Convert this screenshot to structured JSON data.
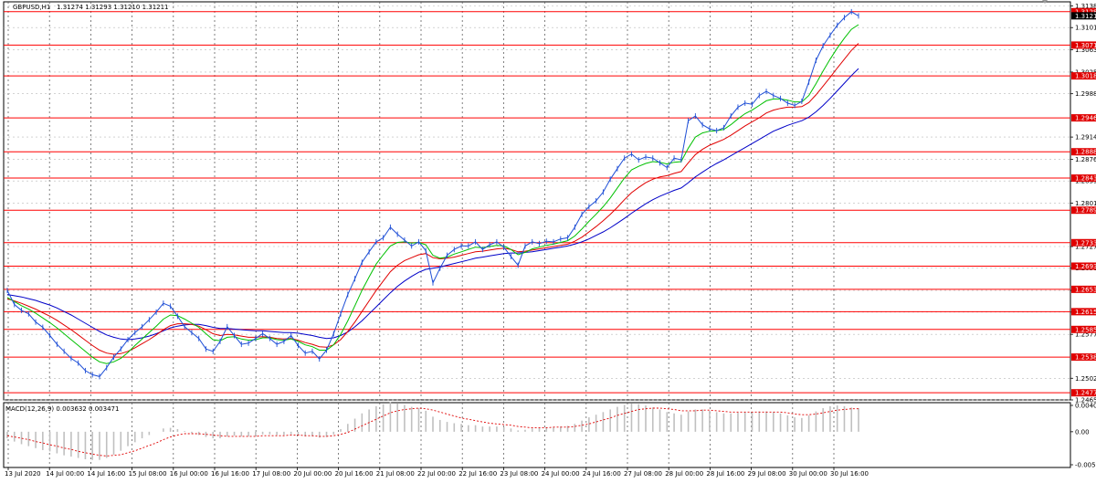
{
  "header": {
    "chart_symbol_label": "GBPUSD,H1",
    "ohlc": "1.31274 1.31293 1.31210 1.31211",
    "macd_label": "MACD(12,26,9)",
    "macd_values": "0.003632 0.003471"
  },
  "colors": {
    "price_line": "#1f4fd6",
    "ma_fast": "#00c000",
    "ma_mid": "#e00000",
    "ma_slow": "#0000c8",
    "level_line": "#ff0000",
    "level_tag": "#e00000",
    "current_tag": "#000000",
    "grid": "#b8b8b8",
    "macd_hist": "#c0c0c0",
    "macd_signal": "#e00000"
  },
  "price_axis_ticks": [
    "1.31380",
    "1.31010",
    "1.30630",
    "1.30250",
    "1.29880",
    "1.29140",
    "1.28760",
    "1.28390",
    "1.28010",
    "1.27270",
    "1.26900",
    "1.26520",
    "1.26150",
    "1.25770",
    "1.25020",
    "1.24650"
  ],
  "level_tags": [
    "1.31282",
    "1.30711",
    "1.30185",
    "1.29468",
    "1.28889",
    "1.28439",
    "1.27891",
    "1.27336",
    "1.26935",
    "1.26539",
    "1.26157",
    "1.25854",
    "1.25382",
    "1.24772"
  ],
  "current_price_tag": "1.31211",
  "macd_axis_ticks": [
    "0.004022",
    "0.00",
    "-0.005036"
  ],
  "time_axis_labels": [
    "13 Jul 2020",
    "14 Jul 00:00",
    "14 Jul 16:00",
    "15 Jul 08:00",
    "16 Jul 00:00",
    "16 Jul 16:00",
    "17 Jul 08:00",
    "20 Jul 00:00",
    "20 Jul 16:00",
    "21 Jul 08:00",
    "22 Jul 00:00",
    "22 Jul 16:00",
    "23 Jul 08:00",
    "24 Jul 00:00",
    "24 Jul 16:00",
    "27 Jul 08:00",
    "28 Jul 00:00",
    "28 Jul 16:00",
    "29 Jul 08:00",
    "30 Jul 00:00",
    "30 Jul 16:00"
  ],
  "chart_data": {
    "type": "line",
    "title": "GBPUSD,H1",
    "ylim": [
      1.2465,
      1.3145
    ],
    "grid": true,
    "series": [
      {
        "key": "price",
        "values": [
          1.2652,
          1.2628,
          1.2618,
          1.2612,
          1.2598,
          1.2589,
          1.2575,
          1.256,
          1.2548,
          1.2536,
          1.2528,
          1.2515,
          1.2508,
          1.2505,
          1.252,
          1.2538,
          1.2552,
          1.2568,
          1.258,
          1.259,
          1.2602,
          1.2615,
          1.263,
          1.2625,
          1.2608,
          1.259,
          1.258,
          1.257,
          1.2552,
          1.2548,
          1.2565,
          1.259,
          1.2575,
          1.256,
          1.2562,
          1.257,
          1.2578,
          1.257,
          1.256,
          1.2565,
          1.2575,
          1.2558,
          1.2545,
          1.2548,
          1.2535,
          1.255,
          1.2578,
          1.2612,
          1.2645,
          1.2672,
          1.27,
          1.2718,
          1.2735,
          1.2742,
          1.276,
          1.2748,
          1.2738,
          1.2728,
          1.2735,
          1.272,
          1.2665,
          1.269,
          1.2712,
          1.2722,
          1.2728,
          1.2728,
          1.2735,
          1.2722,
          1.273,
          1.2735,
          1.2726,
          1.271,
          1.2695,
          1.2728,
          1.2735,
          1.2732,
          1.2736,
          1.2735,
          1.274,
          1.2742,
          1.276,
          1.2782,
          1.2795,
          1.2805,
          1.282,
          1.2842,
          1.286,
          1.2878,
          1.2885,
          1.2875,
          1.288,
          1.2878,
          1.287,
          1.2862,
          1.2878,
          1.2875,
          1.2942,
          1.295,
          1.2935,
          1.2928,
          1.2925,
          1.293,
          1.295,
          1.2965,
          1.2972,
          1.297,
          1.2985,
          1.2992,
          1.2985,
          1.298,
          1.2972,
          1.2968,
          1.2975,
          1.3008,
          1.3045,
          1.307,
          1.3088,
          1.3105,
          1.3118,
          1.3128,
          1.3121
        ]
      },
      {
        "key": "ma_fast",
        "values": [
          1.264,
          1.2633,
          1.2626,
          1.262,
          1.2613,
          1.2605,
          1.2597,
          1.2588,
          1.2578,
          1.2568,
          1.2558,
          1.2548,
          1.2538,
          1.253,
          1.2527,
          1.253,
          1.2536,
          1.2546,
          1.2558,
          1.2569,
          1.258,
          1.2591,
          1.2603,
          1.261,
          1.2609,
          1.2603,
          1.2596,
          1.2589,
          1.2578,
          1.2568,
          1.2566,
          1.2572,
          1.2573,
          1.2569,
          1.2567,
          1.2568,
          1.2571,
          1.2571,
          1.2568,
          1.2567,
          1.2569,
          1.2565,
          1.2559,
          1.2556,
          1.255,
          1.255,
          1.2559,
          1.2577,
          1.26,
          1.2626,
          1.2652,
          1.2675,
          1.2697,
          1.2713,
          1.2728,
          1.2734,
          1.2735,
          1.2733,
          1.2734,
          1.273,
          1.2712,
          1.2707,
          1.2709,
          1.2714,
          1.2718,
          1.2722,
          1.2726,
          1.2725,
          1.2727,
          1.2729,
          1.2728,
          1.2722,
          1.2713,
          1.2717,
          1.2723,
          1.2726,
          1.2729,
          1.2731,
          1.2734,
          1.2737,
          1.2745,
          1.2757,
          1.277,
          1.2782,
          1.2795,
          1.281,
          1.2827,
          1.2844,
          1.2858,
          1.2864,
          1.2869,
          1.2872,
          1.2871,
          1.2868,
          1.2871,
          1.2872,
          1.2895,
          1.2914,
          1.2921,
          1.2924,
          1.2925,
          1.2927,
          1.2935,
          1.2945,
          1.2954,
          1.296,
          1.2968,
          1.2976,
          1.2979,
          1.2979,
          1.2977,
          1.2974,
          1.2974,
          1.2985,
          1.3005,
          1.3027,
          1.3047,
          1.3066,
          1.3083,
          1.3098,
          1.3106
        ]
      },
      {
        "key": "ma_mid",
        "values": [
          1.2638,
          1.2634,
          1.263,
          1.2625,
          1.262,
          1.2614,
          1.2608,
          1.2601,
          1.2593,
          1.2585,
          1.2576,
          1.2567,
          1.2558,
          1.255,
          1.2545,
          1.2543,
          1.2544,
          1.2548,
          1.2554,
          1.2561,
          1.2568,
          1.2576,
          1.2585,
          1.2592,
          1.2595,
          1.2595,
          1.2594,
          1.2591,
          1.2585,
          1.2578,
          1.2575,
          1.2577,
          1.2576,
          1.2574,
          1.2572,
          1.2572,
          1.2573,
          1.2572,
          1.257,
          1.2569,
          1.257,
          1.2567,
          1.2563,
          1.256,
          1.2556,
          1.2555,
          1.2559,
          1.2568,
          1.2582,
          1.2598,
          1.2616,
          1.2634,
          1.2652,
          1.2668,
          1.2684,
          1.2695,
          1.2703,
          1.2708,
          1.2713,
          1.2715,
          1.2708,
          1.2706,
          1.2707,
          1.2709,
          1.2712,
          1.2715,
          1.2718,
          1.2719,
          1.2721,
          1.2723,
          1.2724,
          1.2722,
          1.2718,
          1.2719,
          1.2721,
          1.2723,
          1.2725,
          1.2727,
          1.2729,
          1.2731,
          1.2736,
          1.2743,
          1.2752,
          1.2761,
          1.2771,
          1.2782,
          1.2794,
          1.2807,
          1.2819,
          1.2828,
          1.2836,
          1.2842,
          1.2846,
          1.2848,
          1.2852,
          1.2855,
          1.287,
          1.2884,
          1.2893,
          1.29,
          1.2905,
          1.291,
          1.2917,
          1.2925,
          1.2933,
          1.294,
          1.2947,
          1.2955,
          1.296,
          1.2963,
          1.2965,
          1.2965,
          1.2966,
          1.2973,
          1.2986,
          1.3001,
          1.3016,
          1.3032,
          1.3047,
          1.3062,
          1.3074
        ]
      },
      {
        "key": "ma_slow",
        "values": [
          1.2645,
          1.2643,
          1.2641,
          1.2638,
          1.2635,
          1.2631,
          1.2627,
          1.2622,
          1.2616,
          1.261,
          1.2603,
          1.2596,
          1.2589,
          1.2582,
          1.2576,
          1.2572,
          1.2569,
          1.2568,
          1.2569,
          1.2571,
          1.2574,
          1.2578,
          1.2583,
          1.2588,
          1.2591,
          1.2593,
          1.2594,
          1.2594,
          1.2592,
          1.2589,
          1.2587,
          1.2587,
          1.2586,
          1.2585,
          1.2584,
          1.2583,
          1.2583,
          1.2582,
          1.2581,
          1.258,
          1.258,
          1.2579,
          1.2577,
          1.2575,
          1.2572,
          1.257,
          1.2571,
          1.2575,
          1.2581,
          1.259,
          1.26,
          1.2612,
          1.2624,
          1.2636,
          1.2648,
          1.2659,
          1.2668,
          1.2676,
          1.2683,
          1.2688,
          1.269,
          1.2692,
          1.2695,
          1.2698,
          1.2701,
          1.2704,
          1.2707,
          1.2709,
          1.2711,
          1.2713,
          1.2715,
          1.2716,
          1.2716,
          1.2717,
          1.2718,
          1.272,
          1.2722,
          1.2724,
          1.2726,
          1.2728,
          1.2731,
          1.2735,
          1.274,
          1.2746,
          1.2752,
          1.2759,
          1.2767,
          1.2775,
          1.2784,
          1.2792,
          1.28,
          1.2807,
          1.2813,
          1.2818,
          1.2823,
          1.2827,
          1.2836,
          1.2846,
          1.2854,
          1.2862,
          1.2869,
          1.2875,
          1.2882,
          1.2889,
          1.2896,
          1.2903,
          1.291,
          1.2917,
          1.2924,
          1.2929,
          1.2934,
          1.2938,
          1.2942,
          1.2948,
          1.2957,
          1.2968,
          1.298,
          1.2993,
          1.3006,
          1.3019,
          1.3031
        ]
      }
    ],
    "macd": {
      "histogram": [
        -0.001,
        -0.0015,
        -0.0019,
        -0.0022,
        -0.0025,
        -0.0028,
        -0.003,
        -0.0033,
        -0.0036,
        -0.0038,
        -0.004,
        -0.0042,
        -0.0043,
        -0.0043,
        -0.004,
        -0.0035,
        -0.0029,
        -0.0022,
        -0.0016,
        -0.001,
        -0.0005,
        0.0,
        0.0005,
        0.0006,
        0.0004,
        0.0001,
        -0.0002,
        -0.0005,
        -0.0008,
        -0.001,
        -0.001,
        -0.0007,
        -0.0006,
        -0.0007,
        -0.0007,
        -0.0006,
        -0.0004,
        -0.0004,
        -0.0005,
        -0.0005,
        -0.0004,
        -0.0005,
        -0.0007,
        -0.0007,
        -0.0009,
        -0.0008,
        -0.0004,
        0.0004,
        0.0012,
        0.002,
        0.0028,
        0.0034,
        0.0039,
        0.0042,
        0.0045,
        0.0044,
        0.0041,
        0.0038,
        0.0036,
        0.0032,
        0.0023,
        0.0018,
        0.0015,
        0.0013,
        0.0012,
        0.001,
        0.001,
        0.0008,
        0.0008,
        0.0008,
        0.0007,
        0.0005,
        0.0002,
        0.0003,
        0.0005,
        0.0006,
        0.0007,
        0.0007,
        0.0008,
        0.0009,
        0.0012,
        0.0017,
        0.0022,
        0.0026,
        0.003,
        0.0034,
        0.0038,
        0.0041,
        0.0043,
        0.0042,
        0.004,
        0.0037,
        0.0034,
        0.003,
        0.0028,
        0.0026,
        0.0031,
        0.0034,
        0.0034,
        0.0032,
        0.003,
        0.0028,
        0.0028,
        0.0029,
        0.003,
        0.003,
        0.0031,
        0.0031,
        0.003,
        0.0028,
        0.0025,
        0.0022,
        0.0021,
        0.0025,
        0.0031,
        0.0036,
        0.0039,
        0.004,
        0.0039,
        0.0037,
        0.0036
      ],
      "signal": [
        -0.0006,
        -0.0008,
        -0.001,
        -0.0012,
        -0.0015,
        -0.0017,
        -0.002,
        -0.0022,
        -0.0025,
        -0.0027,
        -0.003,
        -0.0032,
        -0.0034,
        -0.0036,
        -0.0037,
        -0.0036,
        -0.0035,
        -0.0032,
        -0.0029,
        -0.0025,
        -0.0021,
        -0.0017,
        -0.0012,
        -0.0008,
        -0.0005,
        -0.0003,
        -0.0003,
        -0.0003,
        -0.0004,
        -0.0005,
        -0.0006,
        -0.0007,
        -0.0007,
        -0.0007,
        -0.0007,
        -0.0007,
        -0.0006,
        -0.0006,
        -0.0006,
        -0.0006,
        -0.0005,
        -0.0005,
        -0.0006,
        -0.0006,
        -0.0007,
        -0.0007,
        -0.0006,
        -0.0004,
        -0.0001,
        0.0004,
        0.0009,
        0.0014,
        0.0019,
        0.0024,
        0.0029,
        0.0032,
        0.0034,
        0.0035,
        0.0036,
        0.0035,
        0.0033,
        0.003,
        0.0027,
        0.0024,
        0.0021,
        0.0019,
        0.0017,
        0.0015,
        0.0013,
        0.0012,
        0.0011,
        0.001,
        0.0008,
        0.0007,
        0.0006,
        0.0006,
        0.0006,
        0.0007,
        0.0007,
        0.0007,
        0.0008,
        0.001,
        0.0012,
        0.0015,
        0.0018,
        0.0021,
        0.0025,
        0.0028,
        0.0031,
        0.0034,
        0.0035,
        0.0036,
        0.0036,
        0.0035,
        0.0034,
        0.0032,
        0.0032,
        0.0032,
        0.0033,
        0.0033,
        0.0032,
        0.0031,
        0.003,
        0.003,
        0.003,
        0.003,
        0.003,
        0.003,
        0.003,
        0.003,
        0.0029,
        0.0027,
        0.0026,
        0.0026,
        0.0027,
        0.0029,
        0.0031,
        0.0033,
        0.0034,
        0.0035,
        0.0035
      ]
    }
  }
}
